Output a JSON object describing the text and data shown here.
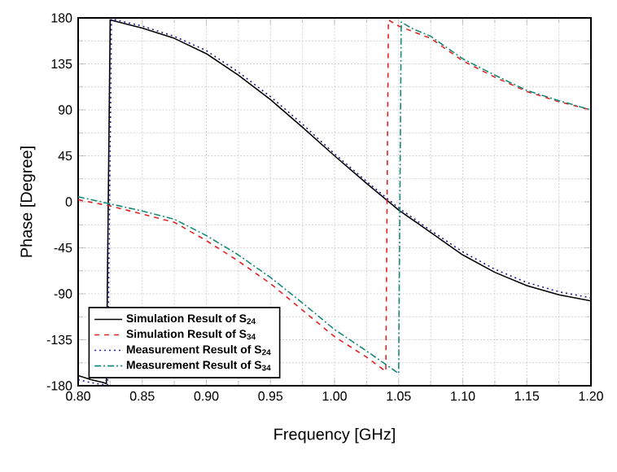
{
  "chart_data": {
    "type": "line",
    "xlabel": "Frequency [GHz]",
    "ylabel": "Phase [Degree]",
    "xlim": [
      0.8,
      1.2
    ],
    "ylim": [
      -180,
      180
    ],
    "xticks": [
      {
        "value": 0.8,
        "label": "0.80"
      },
      {
        "value": 0.85,
        "label": "0.85"
      },
      {
        "value": 0.9,
        "label": "0.90"
      },
      {
        "value": 0.95,
        "label": "0.95"
      },
      {
        "value": 1.0,
        "label": "1.00"
      },
      {
        "value": 1.05,
        "label": "1.05"
      },
      {
        "value": 1.1,
        "label": "1.10"
      },
      {
        "value": 1.15,
        "label": "1.15"
      },
      {
        "value": 1.2,
        "label": "1.20"
      }
    ],
    "yticks": [
      -180,
      -135,
      -90,
      -45,
      0,
      45,
      90,
      135,
      180
    ],
    "grid": true,
    "legend": "bottom left",
    "marker": "none",
    "series": [
      {
        "name": "Simulation Result of S$_{24}$",
        "color": "#000000",
        "line_style": "solid",
        "x": [
          0.8,
          0.81,
          0.82,
          0.822,
          0.825,
          0.85,
          0.875,
          0.9,
          0.925,
          0.95,
          0.975,
          1.0,
          1.025,
          1.05,
          1.075,
          1.1,
          1.125,
          1.15,
          1.175,
          1.2
        ],
        "values": [
          -170,
          -174,
          -177,
          -178,
          178,
          170,
          160,
          145,
          124,
          100,
          73,
          45,
          18,
          -8,
          -30,
          -52,
          -69,
          -82,
          -91,
          -97
        ]
      },
      {
        "name": "Simulation Result of S$_{34}$",
        "color": "#e02424",
        "line_style": "dashed",
        "x": [
          0.8,
          0.825,
          0.85,
          0.875,
          0.9,
          0.925,
          0.95,
          0.975,
          1.0,
          1.025,
          1.04,
          1.042,
          1.05,
          1.075,
          1.1,
          1.125,
          1.15,
          1.175,
          1.2
        ],
        "values": [
          2,
          -4,
          -12,
          -20,
          -38,
          -58,
          -80,
          -106,
          -132,
          -152,
          -166,
          178,
          172,
          160,
          138,
          122,
          108,
          98,
          90
        ]
      },
      {
        "name": "Measurement Result of S$_{24}$",
        "color": "#1c1c8c",
        "line_style": "dotted",
        "x": [
          0.8,
          0.81,
          0.82,
          0.823,
          0.826,
          0.85,
          0.875,
          0.9,
          0.925,
          0.95,
          0.975,
          1.0,
          1.025,
          1.05,
          1.075,
          1.1,
          1.125,
          1.15,
          1.175,
          1.2
        ],
        "values": [
          -174,
          -177,
          -179,
          -179,
          179,
          172,
          162,
          148,
          127,
          103,
          76,
          47,
          20,
          -6,
          -28,
          -49,
          -66,
          -79,
          -88,
          -94
        ]
      },
      {
        "name": "Measurement Result of S$_{34}$",
        "color": "#178a78",
        "line_style": "dashdot",
        "x": [
          0.8,
          0.825,
          0.85,
          0.875,
          0.9,
          0.925,
          0.95,
          0.975,
          1.0,
          1.025,
          1.05,
          1.052,
          1.06,
          1.075,
          1.1,
          1.125,
          1.15,
          1.175,
          1.2
        ],
        "values": [
          5,
          -2,
          -9,
          -17,
          -33,
          -52,
          -74,
          -99,
          -125,
          -146,
          -168,
          176,
          170,
          162,
          140,
          124,
          109,
          99,
          90
        ]
      }
    ]
  }
}
